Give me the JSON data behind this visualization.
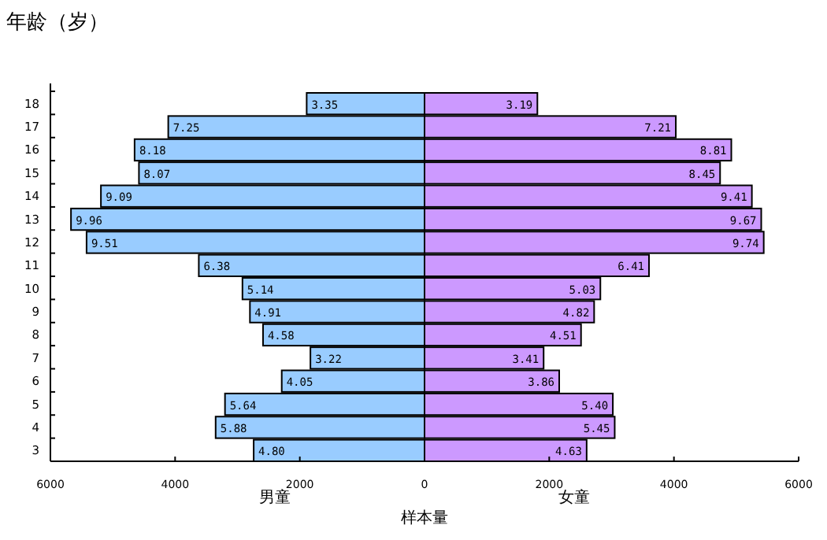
{
  "chart_data": {
    "type": "bar",
    "orientation": "horizontal",
    "stacked": true,
    "ylabel": "年龄（岁）",
    "xlabel": "样本量",
    "categories": [
      "18",
      "17",
      "16",
      "15",
      "14",
      "13",
      "12",
      "11",
      "10",
      "9",
      "8",
      "7",
      "6",
      "5",
      "4",
      "3"
    ],
    "xlim": [
      -6000,
      6000
    ],
    "xticks": [
      {
        "value": -6000,
        "label": "6000"
      },
      {
        "value": -4000,
        "label": "4000"
      },
      {
        "value": -2000,
        "label": "2000"
      },
      0,
      2000,
      4000,
      6000
    ],
    "grid": false,
    "legend": false,
    "series": [
      {
        "name": "男童",
        "color": "#99ccff",
        "values": [
          -1890,
          -4110,
          -4650,
          -4580,
          -5190,
          -5670,
          -5420,
          -3620,
          -2920,
          -2800,
          -2590,
          -1830,
          -2290,
          -3200,
          -3350,
          -2740
        ]
      },
      {
        "name": "女童",
        "color": "#cc99ff",
        "values": [
          1810,
          4030,
          4920,
          4740,
          5250,
          5400,
          5440,
          3600,
          2820,
          2720,
          2510,
          1910,
          2160,
          3020,
          3050,
          2600
        ]
      }
    ],
    "annotations": [
      {
        "text": "3.35",
        "x": -1890,
        "y": "18"
      },
      {
        "text": "7.25",
        "x": -4110,
        "y": "17"
      },
      {
        "text": "8.18",
        "x": -4650,
        "y": "16"
      },
      {
        "text": "8.07",
        "x": -4580,
        "y": "15"
      },
      {
        "text": "9.09",
        "x": -5190,
        "y": "14"
      },
      {
        "text": "9.96",
        "x": -5670,
        "y": "13"
      },
      {
        "text": "9.51",
        "x": -5420,
        "y": "12"
      },
      {
        "text": "6.38",
        "x": -3620,
        "y": "11"
      },
      {
        "text": "5.14",
        "x": -2920,
        "y": "10"
      },
      {
        "text": "4.91",
        "x": -2800,
        "y": "9"
      },
      {
        "text": "4.58",
        "x": -2590,
        "y": "8"
      },
      {
        "text": "3.22",
        "x": -1830,
        "y": "7"
      },
      {
        "text": "4.05",
        "x": -2290,
        "y": "6"
      },
      {
        "text": "5.64",
        "x": -3200,
        "y": "5"
      },
      {
        "text": "5.88",
        "x": -3350,
        "y": "4"
      },
      {
        "text": "4.80",
        "x": -2740,
        "y": "3"
      },
      {
        "text": "3.19",
        "x": 1810,
        "y": "18"
      },
      {
        "text": "7.21",
        "x": 4030,
        "y": "17"
      },
      {
        "text": "8.81",
        "x": 4920,
        "y": "16"
      },
      {
        "text": "8.45",
        "x": 4740,
        "y": "15"
      },
      {
        "text": "9.41",
        "x": 5250,
        "y": "14"
      },
      {
        "text": "9.67",
        "x": 5400,
        "y": "13"
      },
      {
        "text": "9.74",
        "x": 5440,
        "y": "12"
      },
      {
        "text": "6.41",
        "x": 3600,
        "y": "11"
      },
      {
        "text": "5.03",
        "x": 2820,
        "y": "10"
      },
      {
        "text": "4.82",
        "x": 2720,
        "y": "9"
      },
      {
        "text": "4.51",
        "x": 2510,
        "y": "8"
      },
      {
        "text": "3.41",
        "x": 1910,
        "y": "7"
      },
      {
        "text": "3.86",
        "x": 2160,
        "y": "6"
      },
      {
        "text": "5.40",
        "x": 3020,
        "y": "5"
      },
      {
        "text": "5.45",
        "x": 3050,
        "y": "4"
      },
      {
        "text": "4.63",
        "x": 2600,
        "y": "3"
      }
    ]
  }
}
